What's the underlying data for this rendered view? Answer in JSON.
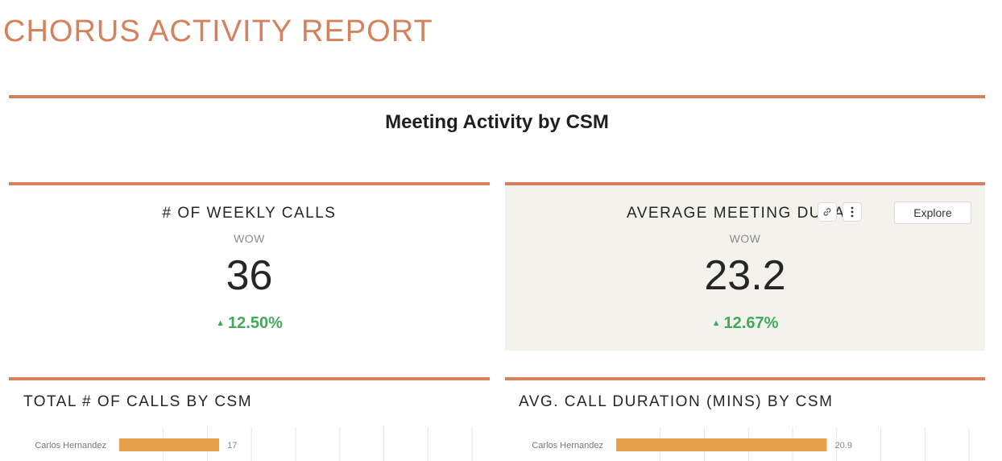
{
  "report": {
    "title": "CHORUS ACTIVITY REPORT"
  },
  "section": {
    "title": "Meeting Activity by CSM"
  },
  "tiles": [
    {
      "title": "# OF WEEKLY CALLS",
      "subtitle": "WOW",
      "value": "36",
      "change": "12.50%",
      "change_icon": "triangle-up-icon"
    },
    {
      "title": "AVERAGE MEETING DURATIO",
      "subtitle": "WOW",
      "value": "23.2",
      "change": "12.67%",
      "change_icon": "triangle-up-icon",
      "explore_label": "Explore"
    }
  ],
  "colors": {
    "accent": "#d4825c",
    "bar": "#e8a04d",
    "positive": "#3faa5a",
    "hover_bg": "#f3f2ed"
  },
  "chart_data": [
    {
      "type": "bar",
      "title": "TOTAL # OF CALLS BY CSM",
      "orientation": "horizontal",
      "categories": [
        "Carlos Hernandez"
      ],
      "values": [
        17
      ],
      "data_labels": [
        "17"
      ],
      "xlim": [
        0,
        60
      ],
      "grid": true
    },
    {
      "type": "bar",
      "title": "AVG. CALL DURATION (MINS) BY CSM",
      "orientation": "horizontal",
      "categories": [
        "Carlos Hernandez"
      ],
      "values": [
        20.9
      ],
      "data_labels": [
        "20.9"
      ],
      "xlim": [
        0,
        35
      ],
      "grid": true
    }
  ]
}
